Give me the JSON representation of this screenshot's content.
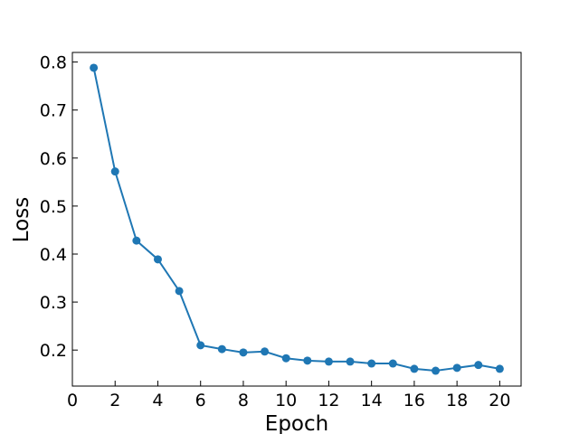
{
  "chart_data": {
    "type": "line",
    "title": "",
    "xlabel": "Epoch",
    "ylabel": "Loss",
    "xlim": [
      0,
      21
    ],
    "ylim": [
      0.125,
      0.82
    ],
    "xticks": [
      0,
      2,
      4,
      6,
      8,
      10,
      12,
      14,
      16,
      18,
      20
    ],
    "yticks": [
      0.2,
      0.3,
      0.4,
      0.5,
      0.6,
      0.7,
      0.8
    ],
    "grid": false,
    "legend": "none",
    "series": [
      {
        "color": "#1f77b4",
        "marker": "circle",
        "x": [
          1,
          2,
          3,
          4,
          5,
          6,
          7,
          8,
          9,
          10,
          11,
          12,
          13,
          14,
          15,
          16,
          17,
          18,
          19,
          20
        ],
        "y": [
          0.788,
          0.572,
          0.428,
          0.389,
          0.323,
          0.21,
          0.202,
          0.195,
          0.197,
          0.183,
          0.178,
          0.176,
          0.176,
          0.172,
          0.172,
          0.161,
          0.157,
          0.163,
          0.169,
          0.161
        ]
      }
    ]
  }
}
